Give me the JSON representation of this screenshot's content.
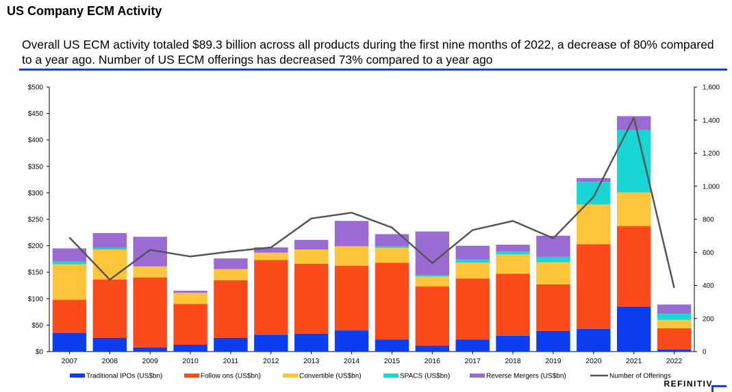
{
  "page_title": "US Company ECM Activity",
  "headline": "Overall US ECM activity totaled $89.3 billion across all products during the first nine months of 2022, a decrease of 80% compared to a year ago.  Number of US ECM offerings has decreased 73% compared to a year ago",
  "brand": "REFINITIV",
  "colors": {
    "traditional_ipos": "#0a3ef0",
    "follow_ons": "#fc4a1a",
    "convertible": "#fec53a",
    "spacs": "#17d6d3",
    "reverse_mergers": "#9a6bd3",
    "offerings_line": "#555555",
    "headline_rule": "#1a3fd9"
  },
  "chart_data": {
    "type": "bar",
    "stacked": true,
    "categories": [
      "2007",
      "2008",
      "2009",
      "2010",
      "2011",
      "2012",
      "2013",
      "2014",
      "2015",
      "2016",
      "2017",
      "2018",
      "2019",
      "2020",
      "2021",
      "2022"
    ],
    "series": [
      {
        "name": "Traditional IPOs (US$bn)",
        "values": [
          35,
          26,
          8,
          13,
          26,
          32,
          34,
          40,
          23,
          11,
          23,
          30,
          39,
          43,
          85,
          4
        ]
      },
      {
        "name": "Follow ons (US$bn)",
        "values": [
          63,
          110,
          132,
          77,
          109,
          141,
          132,
          122,
          145,
          112,
          115,
          117,
          88,
          160,
          152,
          40
        ]
      },
      {
        "name": "Convertible (US$bn)",
        "values": [
          67,
          57,
          21,
          21,
          21,
          14,
          27,
          37,
          28,
          19,
          30,
          37,
          42,
          75,
          64,
          16
        ]
      },
      {
        "name": "SPACS (US$bn)",
        "values": [
          5,
          3,
          0,
          0,
          0,
          0,
          0,
          0,
          3,
          2,
          6,
          5,
          10,
          43,
          118,
          12
        ]
      },
      {
        "name": "Reverse Mergers (US$bn)",
        "values": [
          25,
          28,
          56,
          4,
          20,
          10,
          18,
          48,
          23,
          83,
          26,
          13,
          40,
          7,
          26,
          17
        ]
      }
    ],
    "line_series": {
      "name": "Number of Offerings",
      "axis": "right",
      "values": [
        690,
        435,
        615,
        575,
        605,
        630,
        805,
        840,
        750,
        535,
        735,
        790,
        685,
        935,
        1415,
        385
      ]
    },
    "y_left": {
      "min": 0,
      "max": 500,
      "step": 50,
      "ticks": [
        "$0",
        "$50",
        "$100",
        "$150",
        "$200",
        "$250",
        "$300",
        "$350",
        "$400",
        "$450",
        "$500"
      ]
    },
    "y_right": {
      "min": 0,
      "max": 1600,
      "step": 200,
      "ticks": [
        "0",
        "200",
        "400",
        "600",
        "800",
        "1,000",
        "1,200",
        "1,400",
        "1,600"
      ]
    },
    "grid": false,
    "legend_position": "bottom"
  }
}
